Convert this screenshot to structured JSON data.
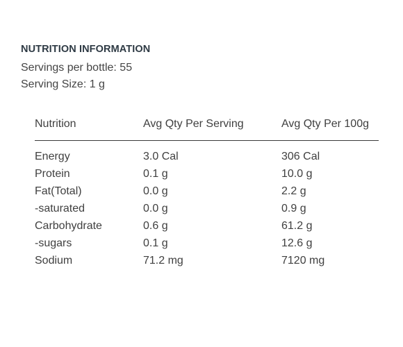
{
  "heading": "NUTRITION INFORMATION",
  "servings_per_bottle": "Servings per bottle: 55",
  "serving_size": "Serving Size: 1 g",
  "table": {
    "headers": [
      "Nutrition",
      "Avg Qty Per Serving",
      "Avg Qty Per 100g"
    ],
    "rows": [
      [
        "Energy",
        "3.0 Cal",
        "306 Cal"
      ],
      [
        "Protein",
        "0.1 g",
        "10.0 g"
      ],
      [
        "Fat(Total)",
        "0.0 g",
        "2.2 g"
      ],
      [
        "-saturated",
        "0.0 g",
        "0.9 g"
      ],
      [
        "Carbohydrate",
        "0.6 g",
        "61.2 g"
      ],
      [
        "-sugars",
        "0.1 g",
        "12.6 g"
      ],
      [
        "Sodium",
        "71.2 mg",
        "7120 mg"
      ]
    ]
  }
}
